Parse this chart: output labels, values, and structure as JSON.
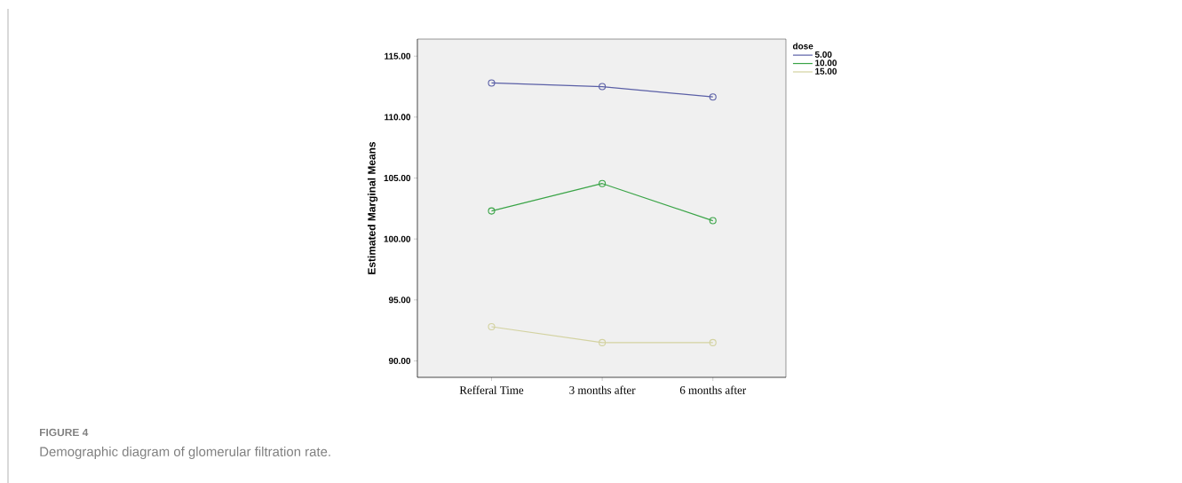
{
  "chart_data": {
    "type": "line",
    "categories": [
      "Refferal Time",
      "3 months after",
      "6 months after"
    ],
    "ylabel": "Estimated Marginal Means",
    "legend_title": "dose",
    "series": [
      {
        "name": "5.00",
        "color": "#5a5fa6",
        "values": [
          112.8,
          112.5,
          111.65
        ]
      },
      {
        "name": "10.00",
        "color": "#3aa447",
        "values": [
          102.3,
          104.55,
          101.5
        ]
      },
      {
        "name": "15.00",
        "color": "#d3d2a0",
        "values": [
          92.8,
          91.5,
          91.5
        ]
      }
    ],
    "ylim": [
      88.65,
      116.4
    ],
    "yticks": [
      {
        "value": 90,
        "label": "90.00"
      },
      {
        "value": 95,
        "label": "95.00"
      },
      {
        "value": 100,
        "label": "100.00"
      },
      {
        "value": 105,
        "label": "105.00"
      },
      {
        "value": 110,
        "label": "110.00"
      },
      {
        "value": 115,
        "label": "115.00"
      }
    ],
    "legend": "top right",
    "marker": "circle",
    "line_style": "solid",
    "grid": false,
    "annotations": [
      "FIGURE 4",
      "Demographic diagram of glomerular filtration rate."
    ]
  }
}
